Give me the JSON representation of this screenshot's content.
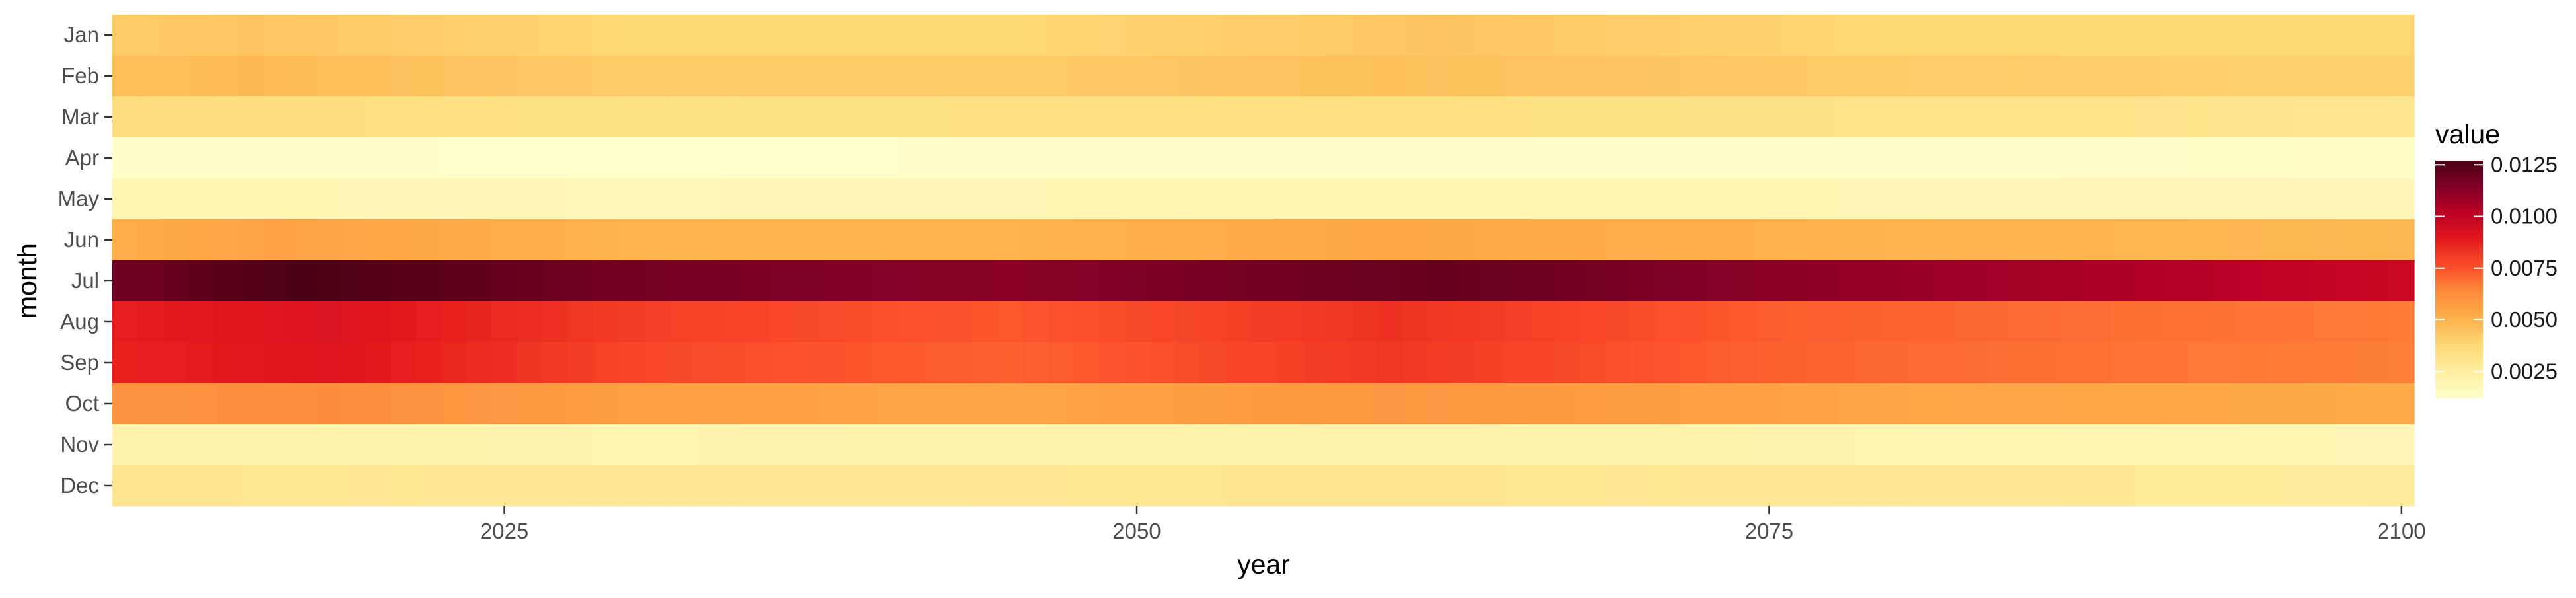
{
  "chart_data": {
    "type": "heatmap",
    "title": "",
    "xlabel": "year",
    "ylabel": "month",
    "x_start": 2010,
    "x_end": 2100,
    "xlim": [
      2009.5,
      2100.5
    ],
    "x_ticks": [
      2025,
      2050,
      2075,
      2100
    ],
    "x_tick_labels": [
      "2025",
      "2050",
      "2075",
      "2100"
    ],
    "months": [
      "Jan",
      "Feb",
      "Mar",
      "Apr",
      "May",
      "Jun",
      "Jul",
      "Aug",
      "Sep",
      "Oct",
      "Nov",
      "Dec"
    ],
    "month_profiles": [
      {
        "month": "Jan",
        "knots": [
          [
            2010,
            0.0042
          ],
          [
            2015,
            0.0044
          ],
          [
            2030,
            0.0038
          ],
          [
            2045,
            0.0038
          ],
          [
            2062,
            0.0044
          ],
          [
            2080,
            0.0038
          ],
          [
            2100,
            0.0038
          ]
        ]
      },
      {
        "month": "Feb",
        "knots": [
          [
            2010,
            0.0046
          ],
          [
            2015,
            0.0048
          ],
          [
            2030,
            0.0042
          ],
          [
            2045,
            0.0042
          ],
          [
            2060,
            0.0046
          ],
          [
            2080,
            0.0042
          ],
          [
            2100,
            0.004
          ]
        ]
      },
      {
        "month": "Mar",
        "knots": [
          [
            2010,
            0.0035
          ],
          [
            2030,
            0.0033
          ],
          [
            2060,
            0.0034
          ],
          [
            2080,
            0.0032
          ],
          [
            2100,
            0.003
          ]
        ]
      },
      {
        "month": "Apr",
        "knots": [
          [
            2010,
            0.0013
          ],
          [
            2030,
            0.0012
          ],
          [
            2060,
            0.0013
          ],
          [
            2080,
            0.0013
          ],
          [
            2100,
            0.0014
          ]
        ]
      },
      {
        "month": "May",
        "knots": [
          [
            2010,
            0.002
          ],
          [
            2030,
            0.0018
          ],
          [
            2060,
            0.002
          ],
          [
            2080,
            0.0019
          ],
          [
            2100,
            0.0019
          ]
        ]
      },
      {
        "month": "Jun",
        "knots": [
          [
            2010,
            0.0052
          ],
          [
            2016,
            0.0056
          ],
          [
            2030,
            0.005
          ],
          [
            2045,
            0.005
          ],
          [
            2060,
            0.0054
          ],
          [
            2080,
            0.005
          ],
          [
            2100,
            0.0048
          ]
        ]
      },
      {
        "month": "Jul",
        "knots": [
          [
            2010,
            0.0118
          ],
          [
            2017,
            0.0127
          ],
          [
            2030,
            0.0117
          ],
          [
            2045,
            0.0112
          ],
          [
            2062,
            0.0121
          ],
          [
            2075,
            0.0112
          ],
          [
            2090,
            0.0104
          ],
          [
            2100,
            0.0097
          ]
        ]
      },
      {
        "month": "Aug",
        "knots": [
          [
            2010,
            0.0088
          ],
          [
            2018,
            0.0092
          ],
          [
            2030,
            0.008
          ],
          [
            2045,
            0.0074
          ],
          [
            2060,
            0.0083
          ],
          [
            2075,
            0.0073
          ],
          [
            2090,
            0.0069
          ],
          [
            2100,
            0.0067
          ]
        ]
      },
      {
        "month": "Sep",
        "knots": [
          [
            2010,
            0.0087
          ],
          [
            2018,
            0.0091
          ],
          [
            2030,
            0.0078
          ],
          [
            2045,
            0.0072
          ],
          [
            2060,
            0.0082
          ],
          [
            2075,
            0.0072
          ],
          [
            2090,
            0.0068
          ],
          [
            2100,
            0.0066
          ]
        ]
      },
      {
        "month": "Oct",
        "knots": [
          [
            2010,
            0.0061
          ],
          [
            2018,
            0.0063
          ],
          [
            2030,
            0.0057
          ],
          [
            2045,
            0.0055
          ],
          [
            2060,
            0.006
          ],
          [
            2080,
            0.0055
          ],
          [
            2100,
            0.0053
          ]
        ]
      },
      {
        "month": "Nov",
        "knots": [
          [
            2010,
            0.0022
          ],
          [
            2030,
            0.002
          ],
          [
            2060,
            0.0022
          ],
          [
            2080,
            0.002
          ],
          [
            2100,
            0.0019
          ]
        ]
      },
      {
        "month": "Dec",
        "knots": [
          [
            2010,
            0.003
          ],
          [
            2030,
            0.0028
          ],
          [
            2060,
            0.003
          ],
          [
            2080,
            0.0028
          ],
          [
            2100,
            0.0026
          ]
        ]
      }
    ],
    "legend": {
      "title": "value",
      "placement": "right",
      "min": 0.0012,
      "max": 0.0127,
      "ticks": [
        0.0025,
        0.005,
        0.0075,
        0.01,
        0.0125
      ],
      "tick_labels": [
        "0.0025",
        "0.0050",
        "0.0075",
        "0.0100",
        "0.0125"
      ]
    },
    "color_scale": [
      "#ffffcc",
      "#ffeda0",
      "#fed976",
      "#feb24c",
      "#fd8d3c",
      "#fc4e2a",
      "#e31a1c",
      "#bd0026",
      "#800026",
      "#4a0014"
    ],
    "background": "#ffffff",
    "grid": false
  }
}
